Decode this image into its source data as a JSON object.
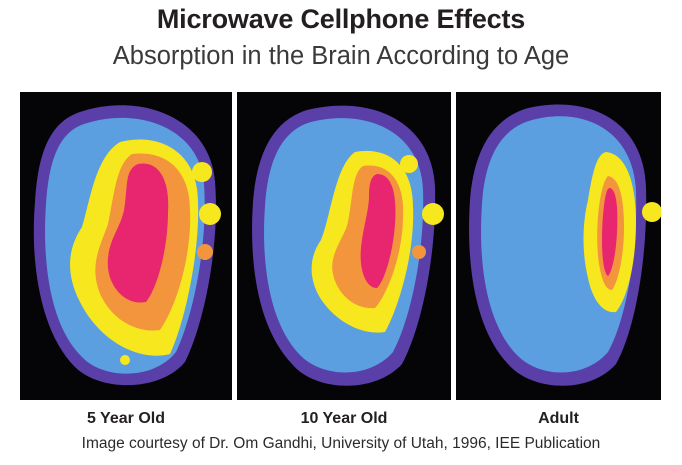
{
  "title": "Microwave Cellphone Effects",
  "subtitle": "Absorption in the Brain According to Age",
  "panels": [
    {
      "label": "5 Year Old"
    },
    {
      "label": "10 Year Old"
    },
    {
      "label": "Adult"
    }
  ],
  "credit": "Image courtesy of Dr. Om Gandhi, University of Utah, 1996, IEE Publication",
  "colors": {
    "background_dark": "#050508",
    "outer_ring": "#5a3fa8",
    "brain_blue": "#5c9fe0",
    "yellow": "#f7e71e",
    "orange": "#f2953d",
    "magenta": "#e8256f"
  }
}
